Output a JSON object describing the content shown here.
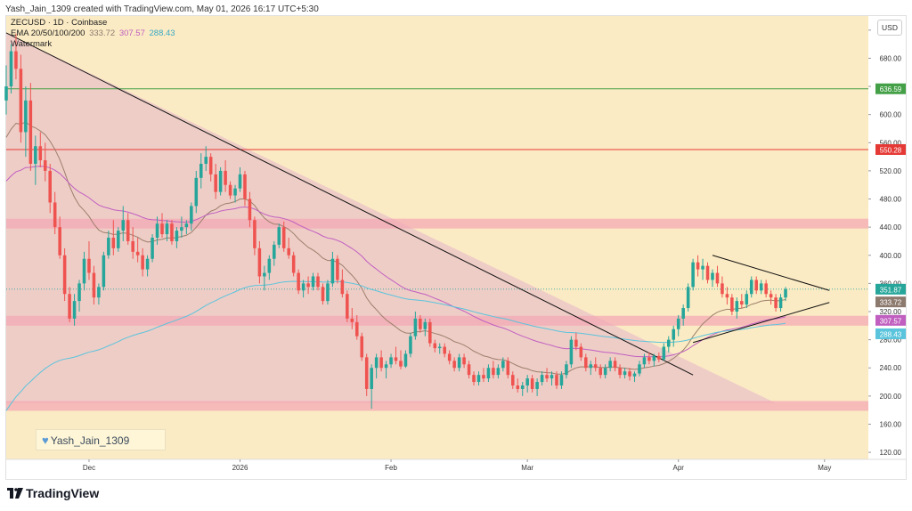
{
  "header": {
    "created_line": "Yash_Jain_1309 created with TradingView.com, May 01, 2026 16:17 UTC+5:30"
  },
  "legend": {
    "symbol_line": "ZECUSD · 1D · Coinbase",
    "ema_label": "EMA 20/50/100/200",
    "ema_values": [
      "333.72",
      "307.57",
      "288.43"
    ],
    "watermark": "Watermark"
  },
  "currency_button": "USD",
  "author_badge": "Yash_Jain_1309",
  "footer": {
    "brand": "TradingView"
  },
  "colors": {
    "bg": "#fbebc4",
    "up": "#26a69a",
    "down": "#ef5350",
    "ema20": "#9b7f6b",
    "ema50": "#c05fc0",
    "ema100": "#59c4dc",
    "zone": "#f4a6b4",
    "resistance": "#e53935",
    "support_line": "#43a047",
    "triangle": "#ecc8c8"
  },
  "chart_data": {
    "type": "candlestick",
    "y_axis": {
      "range": [
        110,
        740
      ],
      "ticks": [
        "120.00",
        "160.00",
        "200.00",
        "240.00",
        "280.00",
        "320.00",
        "360.00",
        "400.00",
        "440.00",
        "480.00",
        "520.00",
        "560.00",
        "600.00",
        "640.00",
        "680.00",
        "720.00"
      ]
    },
    "x_axis": {
      "range": [
        "2025-11-14",
        "2026-05-10"
      ],
      "labels": [
        {
          "date": "2025-12-01",
          "text": "Dec"
        },
        {
          "date": "2026-01-01",
          "text": "2026"
        },
        {
          "date": "2026-02-01",
          "text": "Feb"
        },
        {
          "date": "2026-03-01",
          "text": "Mar"
        },
        {
          "date": "2026-04-01",
          "text": "Apr"
        },
        {
          "date": "2026-05-01",
          "text": "May"
        }
      ]
    },
    "price_labels": [
      {
        "value": 636.59,
        "text": "636.59",
        "color": "#43a047"
      },
      {
        "value": 550.28,
        "text": "550.28",
        "color": "#e53935"
      },
      {
        "value": 351.87,
        "text": "351.87",
        "color": "#26a69a"
      },
      {
        "value": 333.72,
        "text": "333.72",
        "color": "#8d7a6e"
      },
      {
        "value": 307.57,
        "text": "307.57",
        "color": "#c05fc0"
      },
      {
        "value": 288.43,
        "text": "288.43",
        "color": "#59c4dc"
      }
    ],
    "horizontal_lines": [
      {
        "value": 636.59,
        "color": "#43a047"
      },
      {
        "value": 550.28,
        "color": "#e53935"
      }
    ],
    "zones": [
      {
        "from": 438,
        "to": 452
      },
      {
        "from": 300,
        "to": 314
      },
      {
        "from": 179,
        "to": 193
      }
    ],
    "trendlines": [
      {
        "from": [
          "2025-11-14",
          716
        ],
        "to": [
          "2026-04-04",
          230
        ],
        "color": "#111"
      },
      {
        "from": [
          "2026-04-08",
          400
        ],
        "to": [
          "2026-05-02",
          350
        ],
        "color": "#111"
      },
      {
        "from": [
          "2026-04-04",
          276
        ],
        "to": [
          "2026-05-02",
          333
        ],
        "color": "#111"
      }
    ],
    "triangle_fill": [
      [
        "2025-11-14",
        716
      ],
      [
        "2026-04-21",
        190
      ],
      [
        "2025-11-14",
        190
      ]
    ],
    "candles": [
      [
        "2025-11-14",
        620,
        670,
        600,
        640
      ],
      [
        "2025-11-15",
        640,
        700,
        630,
        690
      ],
      [
        "2025-11-16",
        690,
        715,
        650,
        665
      ],
      [
        "2025-11-17",
        665,
        685,
        560,
        575
      ],
      [
        "2025-11-18",
        575,
        640,
        540,
        620
      ],
      [
        "2025-11-19",
        620,
        645,
        520,
        530
      ],
      [
        "2025-11-20",
        530,
        570,
        500,
        555
      ],
      [
        "2025-11-21",
        555,
        575,
        525,
        535
      ],
      [
        "2025-11-22",
        535,
        560,
        505,
        520
      ],
      [
        "2025-11-23",
        520,
        530,
        460,
        475
      ],
      [
        "2025-11-24",
        475,
        490,
        430,
        440
      ],
      [
        "2025-11-25",
        440,
        455,
        395,
        400
      ],
      [
        "2025-11-26",
        400,
        410,
        335,
        345
      ],
      [
        "2025-11-27",
        345,
        355,
        305,
        310
      ],
      [
        "2025-11-28",
        310,
        345,
        300,
        335
      ],
      [
        "2025-11-29",
        335,
        365,
        320,
        360
      ],
      [
        "2025-11-30",
        360,
        405,
        350,
        395
      ],
      [
        "2025-12-01",
        395,
        420,
        365,
        375
      ],
      [
        "2025-12-02",
        375,
        385,
        330,
        340
      ],
      [
        "2025-12-03",
        340,
        360,
        330,
        355
      ],
      [
        "2025-12-04",
        355,
        405,
        350,
        400
      ],
      [
        "2025-12-05",
        400,
        435,
        395,
        425
      ],
      [
        "2025-12-06",
        425,
        450,
        400,
        410
      ],
      [
        "2025-12-07",
        410,
        440,
        405,
        435
      ],
      [
        "2025-12-08",
        435,
        470,
        420,
        450
      ],
      [
        "2025-12-09",
        450,
        460,
        415,
        420
      ],
      [
        "2025-12-10",
        420,
        440,
        395,
        405
      ],
      [
        "2025-12-11",
        405,
        425,
        390,
        400
      ],
      [
        "2025-12-12",
        400,
        410,
        370,
        380
      ],
      [
        "2025-12-13",
        380,
        400,
        370,
        395
      ],
      [
        "2025-12-14",
        395,
        430,
        390,
        425
      ],
      [
        "2025-12-15",
        425,
        455,
        415,
        445
      ],
      [
        "2025-12-16",
        445,
        460,
        425,
        430
      ],
      [
        "2025-12-17",
        430,
        450,
        420,
        445
      ],
      [
        "2025-12-18",
        445,
        450,
        415,
        420
      ],
      [
        "2025-12-19",
        420,
        440,
        410,
        435
      ],
      [
        "2025-12-20",
        435,
        455,
        425,
        440
      ],
      [
        "2025-12-21",
        440,
        450,
        430,
        445
      ],
      [
        "2025-12-22",
        445,
        475,
        435,
        470
      ],
      [
        "2025-12-23",
        470,
        520,
        460,
        510
      ],
      [
        "2025-12-24",
        510,
        545,
        495,
        530
      ],
      [
        "2025-12-25",
        530,
        555,
        520,
        540
      ],
      [
        "2025-12-26",
        540,
        545,
        505,
        515
      ],
      [
        "2025-12-27",
        515,
        530,
        480,
        490
      ],
      [
        "2025-12-28",
        490,
        525,
        485,
        520
      ],
      [
        "2025-12-29",
        520,
        535,
        490,
        500
      ],
      [
        "2025-12-30",
        500,
        505,
        480,
        485
      ],
      [
        "2025-12-31",
        485,
        500,
        475,
        495
      ],
      [
        "2026-01-01",
        495,
        525,
        490,
        515
      ],
      [
        "2026-01-02",
        515,
        520,
        470,
        480
      ],
      [
        "2026-01-03",
        480,
        490,
        440,
        450
      ],
      [
        "2026-01-04",
        450,
        455,
        400,
        410
      ],
      [
        "2026-01-05",
        410,
        420,
        360,
        370
      ],
      [
        "2026-01-06",
        370,
        385,
        350,
        375
      ],
      [
        "2026-01-07",
        375,
        400,
        365,
        395
      ],
      [
        "2026-01-08",
        395,
        420,
        385,
        415
      ],
      [
        "2026-01-09",
        415,
        445,
        410,
        440
      ],
      [
        "2026-01-10",
        440,
        448,
        405,
        410
      ],
      [
        "2026-01-11",
        410,
        425,
        395,
        400
      ],
      [
        "2026-01-12",
        400,
        405,
        370,
        375
      ],
      [
        "2026-01-13",
        375,
        380,
        345,
        350
      ],
      [
        "2026-01-14",
        350,
        365,
        340,
        360
      ],
      [
        "2026-01-15",
        360,
        370,
        345,
        355
      ],
      [
        "2026-01-16",
        355,
        375,
        350,
        370
      ],
      [
        "2026-01-17",
        370,
        375,
        350,
        355
      ],
      [
        "2026-01-18",
        355,
        360,
        330,
        335
      ],
      [
        "2026-01-19",
        335,
        365,
        330,
        360
      ],
      [
        "2026-01-20",
        360,
        405,
        355,
        395
      ],
      [
        "2026-01-21",
        395,
        400,
        360,
        365
      ],
      [
        "2026-01-22",
        365,
        380,
        340,
        345
      ],
      [
        "2026-01-23",
        345,
        350,
        305,
        310
      ],
      [
        "2026-01-24",
        310,
        325,
        295,
        305
      ],
      [
        "2026-01-25",
        305,
        315,
        280,
        285
      ],
      [
        "2026-01-26",
        285,
        290,
        250,
        255
      ],
      [
        "2026-01-27",
        255,
        260,
        200,
        210
      ],
      [
        "2026-01-28",
        210,
        245,
        182,
        240
      ],
      [
        "2026-01-29",
        240,
        260,
        225,
        255
      ],
      [
        "2026-01-30",
        255,
        265,
        235,
        240
      ],
      [
        "2026-01-31",
        240,
        250,
        225,
        245
      ],
      [
        "2026-02-01",
        245,
        260,
        240,
        255
      ],
      [
        "2026-02-02",
        255,
        270,
        245,
        250
      ],
      [
        "2026-02-03",
        250,
        265,
        238,
        242
      ],
      [
        "2026-02-04",
        242,
        265,
        240,
        260
      ],
      [
        "2026-02-05",
        260,
        290,
        255,
        285
      ],
      [
        "2026-02-06",
        285,
        320,
        280,
        310
      ],
      [
        "2026-02-07",
        310,
        315,
        290,
        295
      ],
      [
        "2026-02-08",
        295,
        310,
        285,
        305
      ],
      [
        "2026-02-09",
        305,
        310,
        270,
        275
      ],
      [
        "2026-02-10",
        275,
        280,
        262,
        268
      ],
      [
        "2026-02-11",
        268,
        275,
        260,
        270
      ],
      [
        "2026-02-12",
        270,
        275,
        255,
        260
      ],
      [
        "2026-02-13",
        260,
        265,
        245,
        250
      ],
      [
        "2026-02-14",
        250,
        255,
        235,
        240
      ],
      [
        "2026-02-15",
        240,
        260,
        235,
        255
      ],
      [
        "2026-02-16",
        255,
        260,
        240,
        245
      ],
      [
        "2026-02-17",
        245,
        250,
        225,
        230
      ],
      [
        "2026-02-18",
        230,
        235,
        215,
        220
      ],
      [
        "2026-02-19",
        220,
        235,
        215,
        230
      ],
      [
        "2026-02-20",
        230,
        240,
        220,
        225
      ],
      [
        "2026-02-21",
        225,
        245,
        220,
        240
      ],
      [
        "2026-02-22",
        240,
        250,
        225,
        230
      ],
      [
        "2026-02-23",
        230,
        245,
        225,
        240
      ],
      [
        "2026-02-24",
        240,
        255,
        235,
        250
      ],
      [
        "2026-02-25",
        250,
        255,
        225,
        230
      ],
      [
        "2026-02-26",
        230,
        235,
        210,
        215
      ],
      [
        "2026-02-27",
        215,
        225,
        205,
        210
      ],
      [
        "2026-02-28",
        210,
        220,
        200,
        215
      ],
      [
        "2026-03-01",
        215,
        230,
        205,
        225
      ],
      [
        "2026-03-02",
        225,
        230,
        205,
        210
      ],
      [
        "2026-03-03",
        210,
        225,
        200,
        220
      ],
      [
        "2026-03-04",
        220,
        235,
        215,
        230
      ],
      [
        "2026-03-05",
        230,
        240,
        220,
        225
      ],
      [
        "2026-03-06",
        225,
        235,
        215,
        230
      ],
      [
        "2026-03-07",
        230,
        235,
        210,
        215
      ],
      [
        "2026-03-08",
        215,
        235,
        210,
        230
      ],
      [
        "2026-03-09",
        230,
        250,
        225,
        245
      ],
      [
        "2026-03-10",
        245,
        285,
        240,
        280
      ],
      [
        "2026-03-11",
        280,
        290,
        265,
        270
      ],
      [
        "2026-03-12",
        270,
        275,
        250,
        255
      ],
      [
        "2026-03-13",
        255,
        260,
        235,
        240
      ],
      [
        "2026-03-14",
        240,
        250,
        230,
        245
      ],
      [
        "2026-03-15",
        245,
        255,
        235,
        240
      ],
      [
        "2026-03-16",
        240,
        245,
        225,
        230
      ],
      [
        "2026-03-17",
        230,
        245,
        225,
        240
      ],
      [
        "2026-03-18",
        240,
        255,
        235,
        250
      ],
      [
        "2026-03-19",
        250,
        255,
        235,
        240
      ],
      [
        "2026-03-20",
        240,
        245,
        225,
        230
      ],
      [
        "2026-03-21",
        230,
        240,
        225,
        235
      ],
      [
        "2026-03-22",
        235,
        240,
        222,
        228
      ],
      [
        "2026-03-23",
        228,
        235,
        220,
        232
      ],
      [
        "2026-03-24",
        232,
        250,
        228,
        245
      ],
      [
        "2026-03-25",
        245,
        260,
        240,
        255
      ],
      [
        "2026-03-26",
        255,
        262,
        245,
        250
      ],
      [
        "2026-03-27",
        250,
        260,
        242,
        257
      ],
      [
        "2026-03-28",
        257,
        262,
        248,
        252
      ],
      [
        "2026-03-29",
        252,
        275,
        250,
        270
      ],
      [
        "2026-03-30",
        270,
        285,
        262,
        280
      ],
      [
        "2026-03-31",
        280,
        300,
        270,
        295
      ],
      [
        "2026-04-01",
        295,
        315,
        285,
        310
      ],
      [
        "2026-04-02",
        310,
        330,
        300,
        325
      ],
      [
        "2026-04-03",
        325,
        360,
        320,
        355
      ],
      [
        "2026-04-04",
        355,
        395,
        350,
        390
      ],
      [
        "2026-04-05",
        390,
        400,
        370,
        380
      ],
      [
        "2026-04-06",
        380,
        395,
        365,
        385
      ],
      [
        "2026-04-07",
        385,
        390,
        360,
        365
      ],
      [
        "2026-04-08",
        365,
        380,
        355,
        375
      ],
      [
        "2026-04-09",
        375,
        385,
        355,
        360
      ],
      [
        "2026-04-10",
        360,
        370,
        340,
        345
      ],
      [
        "2026-04-11",
        345,
        355,
        330,
        340
      ],
      [
        "2026-04-12",
        340,
        345,
        315,
        320
      ],
      [
        "2026-04-13",
        320,
        340,
        310,
        335
      ],
      [
        "2026-04-14",
        335,
        345,
        325,
        330
      ],
      [
        "2026-04-15",
        330,
        350,
        325,
        345
      ],
      [
        "2026-04-16",
        345,
        370,
        340,
        365
      ],
      [
        "2026-04-17",
        365,
        370,
        345,
        350
      ],
      [
        "2026-04-18",
        350,
        365,
        345,
        360
      ],
      [
        "2026-04-19",
        360,
        365,
        340,
        345
      ],
      [
        "2026-04-20",
        345,
        350,
        330,
        340
      ],
      [
        "2026-04-21",
        340,
        345,
        320,
        325
      ],
      [
        "2026-04-22",
        325,
        345,
        320,
        340
      ],
      [
        "2026-04-23",
        340,
        355,
        335,
        352
      ]
    ]
  }
}
